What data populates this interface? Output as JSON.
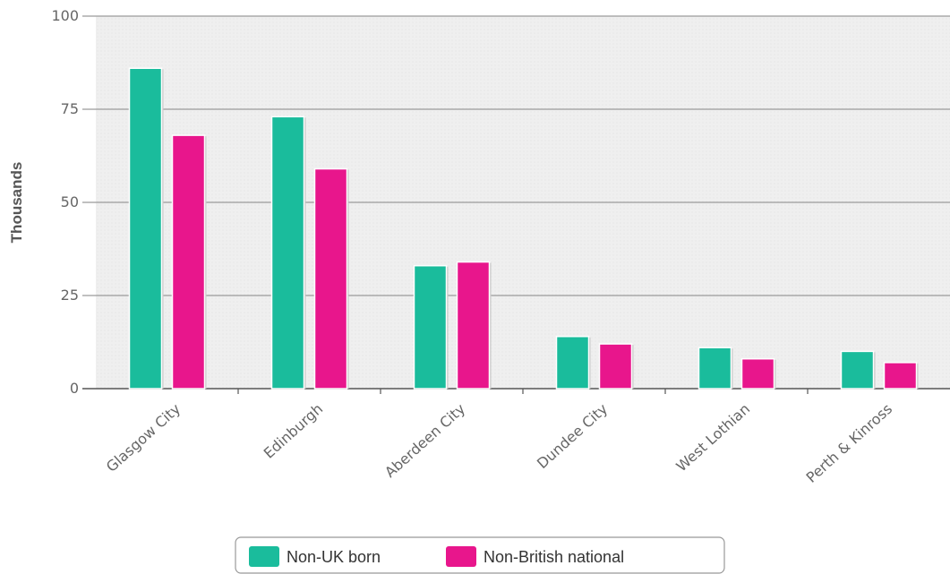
{
  "chart_data": {
    "type": "bar",
    "title": "",
    "xlabel": "",
    "ylabel": "Thousands",
    "ylim": [
      0,
      100
    ],
    "yticks": [
      0,
      25,
      50,
      75,
      100
    ],
    "grid": true,
    "legend_position": "bottom",
    "categories": [
      "Glasgow City",
      "Edinburgh",
      "Aberdeen City",
      "Dundee City",
      "West Lothian",
      "Perth & Kinross"
    ],
    "series": [
      {
        "name": "Non-UK born",
        "color": "#1abc9c",
        "values": [
          86,
          73,
          33,
          14,
          11,
          10
        ]
      },
      {
        "name": "Non-British national",
        "color": "#e8168c",
        "values": [
          68,
          59,
          34,
          12,
          8,
          7
        ]
      }
    ]
  }
}
